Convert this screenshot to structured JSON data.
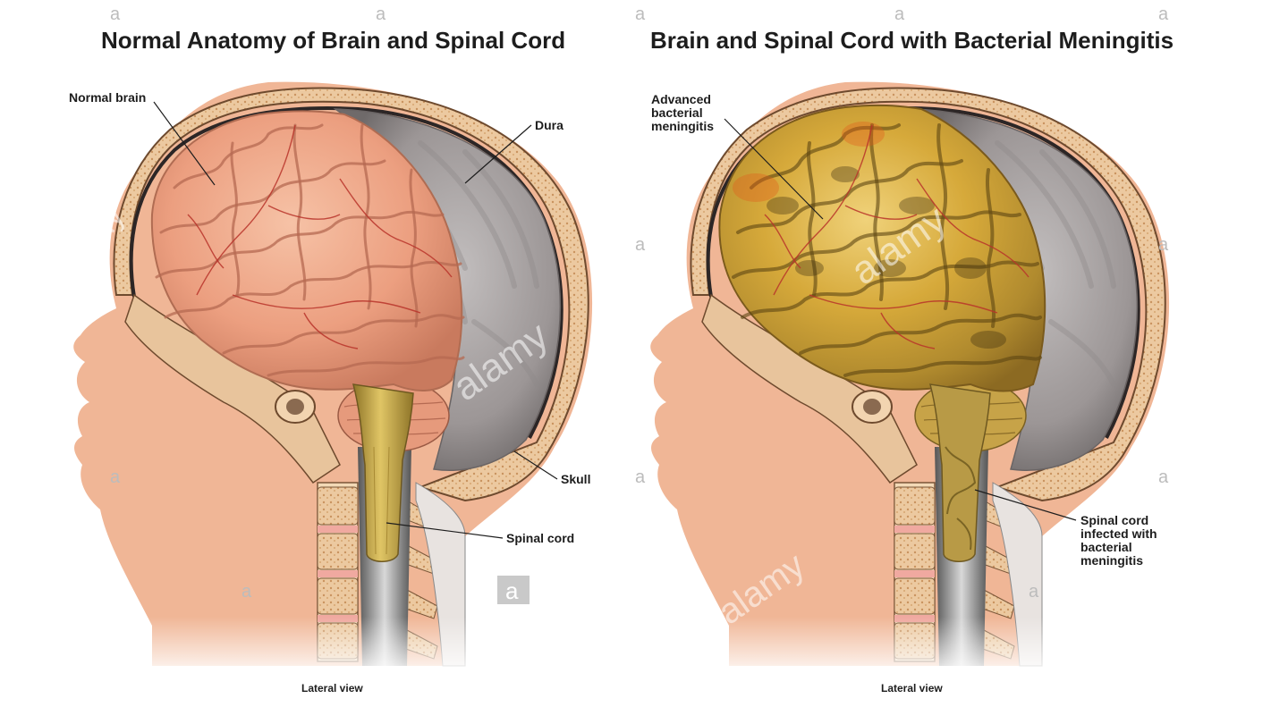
{
  "panels": [
    {
      "title": "Normal Anatomy of Brain and Spinal Cord",
      "labels": {
        "brain": "Normal brain",
        "dura": "Dura",
        "skull": "Skull",
        "cord": "Spinal cord"
      },
      "caption": "Lateral view"
    },
    {
      "title": "Brain and Spinal Cord with Bacterial Meningitis",
      "labels": {
        "brain": [
          "Advanced",
          "bacterial",
          "meningitis"
        ],
        "cord": [
          "Spinal cord",
          "infected with",
          "bacterial",
          "meningitis"
        ]
      },
      "caption": "Lateral view"
    }
  ],
  "watermark": {
    "brand": "alamy",
    "mark": "a"
  },
  "colors": {
    "skin": "#f0b696",
    "normal_brain": "#f1a98c",
    "infected_brain": "#d8b042",
    "dura": "#a9a3a3",
    "spinal_cord": "#c9a948",
    "bone": "#e7c39a"
  }
}
